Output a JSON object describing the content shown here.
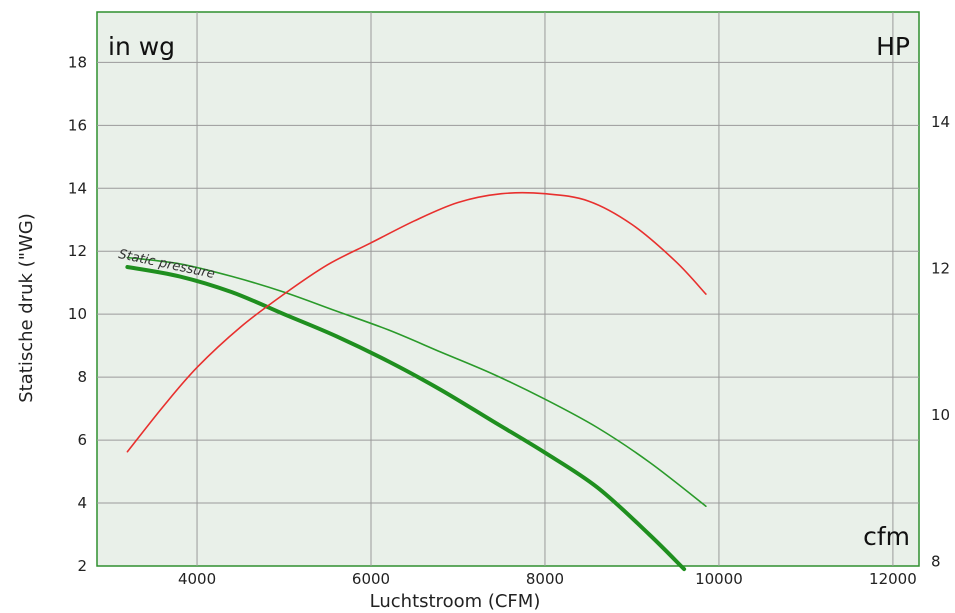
{
  "chart_data": {
    "type": "line",
    "xlabel": "Luchtstroom (CFM)",
    "ylabel": "Statische druk (\"WG)",
    "unit_left": "in wg",
    "unit_right": "HP",
    "unit_x": "cfm",
    "xlim": [
      2850,
      12300
    ],
    "ylim_left": [
      2,
      19.6
    ],
    "ylim_right": [
      7.94,
      15.5
    ],
    "x_ticks": [
      4000,
      6000,
      8000,
      10000,
      12000
    ],
    "y_ticks_left": [
      2,
      4,
      6,
      8,
      10,
      12,
      14,
      16,
      18
    ],
    "y_ticks_right": [
      8,
      10,
      12,
      14
    ],
    "grid": true,
    "annotations": [
      {
        "text": "Static pressure",
        "x": 3550,
        "y": 11.6
      }
    ],
    "series": [
      {
        "axis": "left",
        "color": "#1f8f1f",
        "style": "thick",
        "x": [
          3200,
          3800,
          4400,
          5000,
          5600,
          6200,
          6800,
          7400,
          8000,
          8600,
          9200,
          9600
        ],
        "y": [
          11.5,
          11.2,
          10.7,
          10.0,
          9.3,
          8.5,
          7.6,
          6.6,
          5.6,
          4.5,
          3.0,
          1.9
        ]
      },
      {
        "axis": "left",
        "color": "#2a9a2a",
        "style": "thin",
        "x": [
          3200,
          3800,
          4400,
          5000,
          5600,
          6200,
          6800,
          7400,
          8000,
          8600,
          9200,
          9850
        ],
        "y": [
          11.8,
          11.6,
          11.2,
          10.7,
          10.1,
          9.5,
          8.8,
          8.1,
          7.3,
          6.4,
          5.3,
          3.9
        ]
      },
      {
        "axis": "right",
        "color": "#e8302e",
        "style": "thin",
        "x": [
          3200,
          3600,
          4000,
          4500,
          5000,
          5500,
          6000,
          6500,
          7000,
          7500,
          8000,
          8500,
          9000,
          9500,
          9850
        ],
        "y": [
          9.5,
          10.1,
          10.65,
          11.2,
          11.65,
          12.05,
          12.35,
          12.65,
          12.9,
          13.02,
          13.02,
          12.92,
          12.6,
          12.1,
          11.65
        ]
      }
    ]
  }
}
